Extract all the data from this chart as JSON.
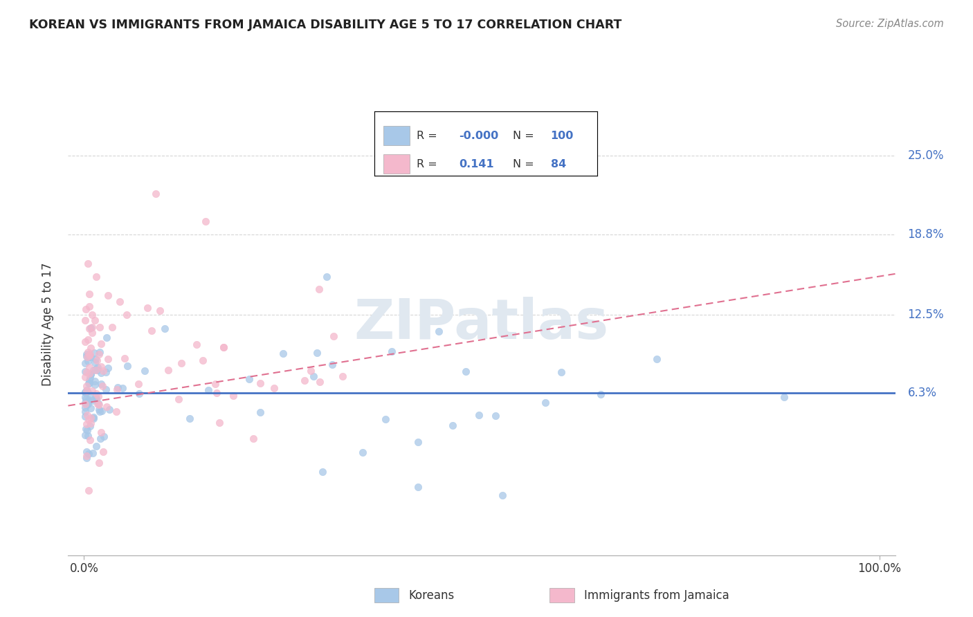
{
  "title": "KOREAN VS IMMIGRANTS FROM JAMAICA DISABILITY AGE 5 TO 17 CORRELATION CHART",
  "source": "Source: ZipAtlas.com",
  "ylabel": "Disability Age 5 to 17",
  "korean_color": "#a8c8e8",
  "jamaica_color": "#f4b8cc",
  "korean_trend_color": "#4472c4",
  "jamaica_trend_color": "#e07090",
  "grid_color": "#cccccc",
  "background_color": "#ffffff",
  "legend_r_korean": "-0.000",
  "legend_n_korean": "100",
  "legend_r_jamaica": "0.141",
  "legend_n_jamaica": "84",
  "ytick_vals": [
    0.063,
    0.125,
    0.188,
    0.25
  ],
  "ytick_labels": [
    "6.3%",
    "12.5%",
    "18.8%",
    "25.0%"
  ],
  "xlim": [
    -0.02,
    1.02
  ],
  "ylim": [
    -0.065,
    0.3
  ],
  "accent_color": "#4472c4"
}
